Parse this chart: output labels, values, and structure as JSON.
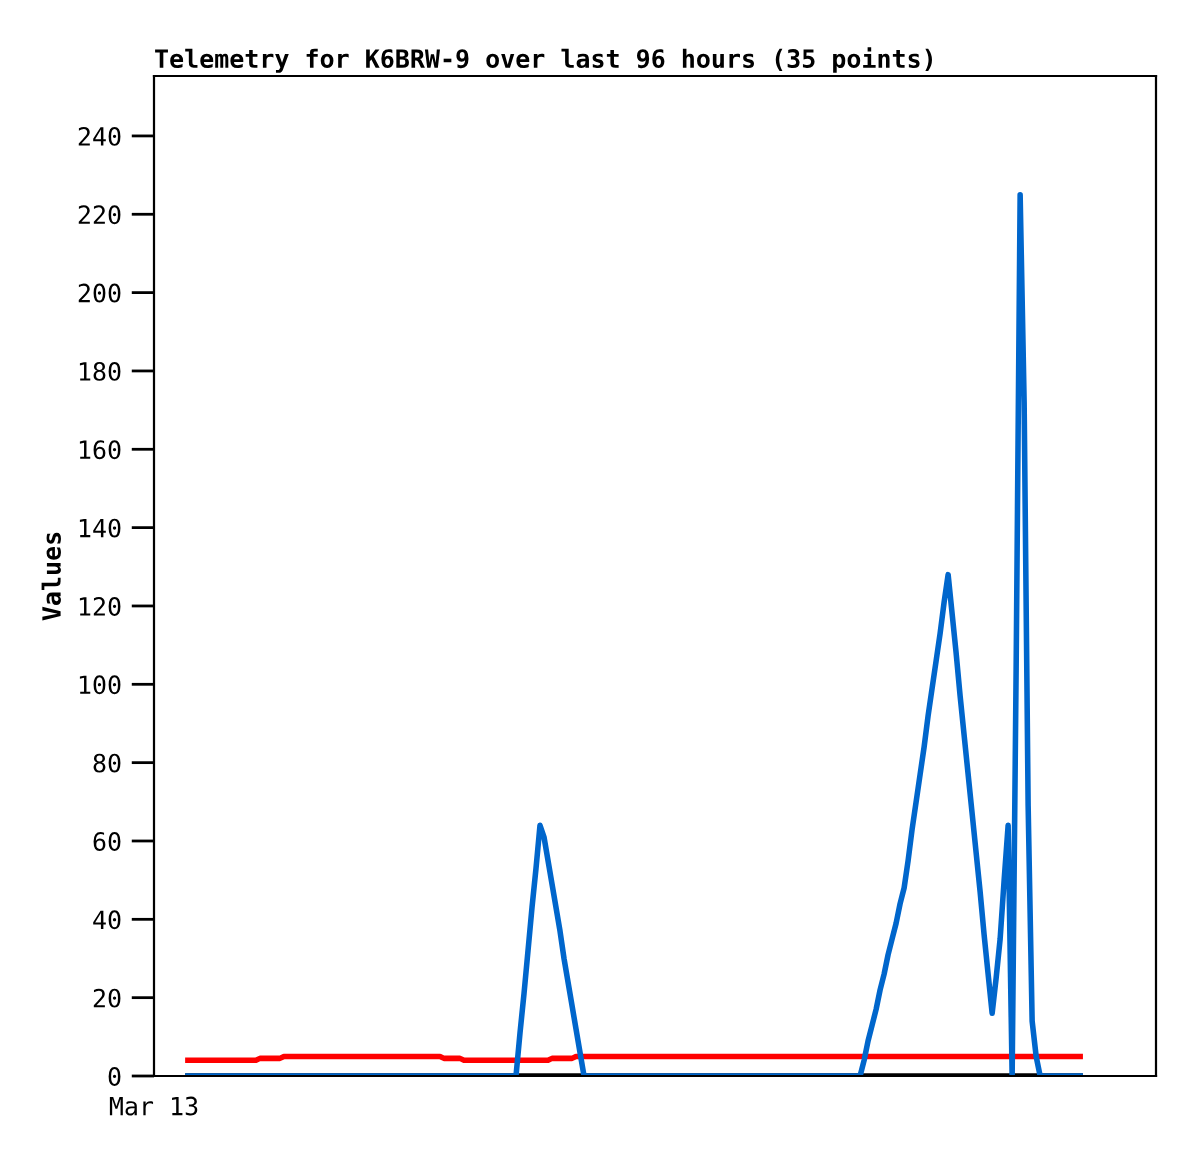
{
  "chart_data": {
    "type": "line",
    "title": "Telemetry for K6BRW-9 over last 96 hours (35 points)",
    "ylabel": "Values",
    "annotations": [
      "Mar 13"
    ],
    "categories": [
      null,
      null,
      null,
      null,
      null,
      null,
      null,
      null,
      null,
      null,
      null,
      null,
      null,
      null,
      null,
      null,
      null,
      null,
      null,
      null,
      null,
      null,
      null,
      null,
      null,
      null,
      null,
      null,
      null,
      null,
      null,
      null,
      null,
      null,
      null,
      null,
      null,
      null,
      null,
      null,
      null,
      null,
      null,
      null,
      null,
      null,
      null,
      null,
      null,
      null,
      null,
      null,
      null,
      null,
      null,
      null,
      null,
      null,
      null,
      null,
      null,
      null,
      null,
      null,
      null,
      null,
      null,
      null,
      null,
      null,
      null,
      null,
      null,
      null,
      null,
      null,
      null,
      null,
      null,
      null,
      null,
      null,
      null,
      null,
      null,
      null,
      null,
      null,
      null,
      null,
      null,
      null,
      null,
      null,
      null,
      null,
      null,
      null,
      null,
      null,
      null,
      null,
      null,
      null,
      null,
      null,
      null,
      null,
      null,
      null,
      null,
      null,
      null,
      null,
      null,
      null,
      null,
      null,
      null,
      null,
      null,
      null,
      null,
      null,
      null,
      null,
      null,
      null,
      null,
      null,
      null,
      null,
      null,
      null,
      null,
      null,
      null,
      null,
      null,
      null,
      null,
      null,
      null,
      null,
      null,
      null,
      null,
      null,
      null,
      null,
      null,
      null,
      null,
      null,
      null,
      null,
      null,
      null,
      null,
      null,
      null,
      null,
      null,
      null,
      null,
      null,
      null,
      null,
      null,
      null,
      null,
      null,
      null,
      null,
      null,
      null,
      null,
      null,
      null,
      null,
      null,
      null,
      null,
      null,
      null,
      null,
      null,
      null,
      null,
      null,
      null,
      null,
      null,
      null,
      null,
      null,
      null,
      null,
      null,
      null,
      null,
      null,
      null,
      null,
      null,
      null,
      null,
      null,
      null,
      null,
      null,
      null,
      null,
      null,
      null,
      null,
      null,
      null,
      null,
      null,
      null,
      null,
      null,
      null
    ],
    "ylim": [
      0,
      255.3
    ],
    "yticks": [
      0,
      20,
      40,
      60,
      80,
      100,
      120,
      140,
      160,
      180,
      200,
      220,
      240
    ],
    "grid": false,
    "marker": "none",
    "line_style": "solid",
    "series": [
      {
        "color": "#000000",
        "values": [
          0,
          0,
          0,
          0,
          0,
          0,
          0,
          0,
          0,
          0,
          0,
          0,
          0,
          0,
          0,
          0,
          0,
          0,
          0,
          0,
          0,
          0,
          0,
          0,
          0,
          0,
          0,
          0,
          0,
          0,
          0,
          0,
          0,
          0,
          0,
          0,
          0,
          0,
          0,
          0,
          0,
          0,
          0,
          0,
          0,
          0,
          0,
          0,
          0,
          0,
          0,
          0,
          0,
          0,
          0,
          0,
          0,
          0,
          0,
          0,
          0,
          0,
          0,
          0,
          0,
          0,
          0,
          0,
          0,
          0,
          0,
          0,
          0,
          0,
          0,
          0,
          0,
          0,
          0,
          0,
          0,
          0,
          0,
          0,
          0,
          0,
          0,
          0,
          0,
          0,
          0,
          0,
          0,
          0,
          0,
          0,
          0,
          0,
          0,
          0,
          0,
          0,
          0,
          0,
          0,
          0,
          0,
          0,
          0,
          0,
          0,
          0,
          0,
          0,
          0,
          0,
          0,
          0,
          0,
          0,
          0,
          0,
          0,
          0,
          0,
          0,
          0,
          0,
          0,
          0,
          0,
          0,
          0,
          0,
          0,
          0,
          0,
          0,
          0,
          0,
          0,
          0,
          0,
          0,
          0,
          0,
          0,
          0,
          0,
          0,
          0,
          0,
          0,
          0,
          0,
          0,
          0,
          0,
          0,
          0,
          0,
          0,
          0,
          0,
          0,
          0,
          0,
          0,
          0,
          0,
          0,
          0,
          0,
          0,
          0,
          0,
          0,
          0,
          0,
          0,
          0,
          0,
          0,
          0,
          0,
          0,
          0,
          0,
          0,
          0,
          0,
          0,
          0,
          0,
          0,
          0,
          0,
          0,
          0,
          0,
          0,
          0,
          0,
          0,
          0,
          0,
          0,
          0,
          0,
          0,
          0,
          0,
          0,
          0,
          0,
          0,
          0,
          0,
          0,
          0,
          0,
          0,
          0,
          0
        ]
      },
      {
        "color": "#ff0000",
        "values": [
          4,
          4,
          4,
          4,
          4,
          4,
          4,
          4,
          4,
          4,
          4,
          4,
          4,
          4,
          4,
          4,
          4,
          4,
          4.5,
          4.5,
          4.5,
          4.5,
          4.5,
          4.5,
          5,
          5,
          5,
          5,
          5,
          5,
          5,
          5,
          5,
          5,
          5,
          5,
          5,
          5,
          5,
          5,
          5,
          5,
          5,
          5,
          5,
          5,
          5,
          5,
          5,
          5,
          5,
          5,
          5,
          5,
          5,
          5,
          5,
          5,
          5,
          5,
          5,
          5,
          5,
          5,
          4.5,
          4.5,
          4.5,
          4.5,
          4.5,
          4,
          4,
          4,
          4,
          4,
          4,
          4,
          4,
          4,
          4,
          4,
          4,
          4,
          4,
          4,
          4,
          4,
          4,
          4,
          4,
          4,
          4,
          4.5,
          4.5,
          4.5,
          4.5,
          4.5,
          4.5,
          5,
          5,
          5,
          5,
          5,
          5,
          5,
          5,
          5,
          5,
          5,
          5,
          5,
          5,
          5,
          5,
          5,
          5,
          5,
          5,
          5,
          5,
          5,
          5,
          5,
          5,
          5,
          5,
          5,
          5,
          5,
          5,
          5,
          5,
          5,
          5,
          5,
          5,
          5,
          5,
          5,
          5,
          5,
          5,
          5,
          5,
          5,
          5,
          5,
          5,
          5,
          5,
          5,
          5,
          5,
          5,
          5,
          5,
          5,
          5,
          5,
          5,
          5,
          5,
          5,
          5,
          5,
          5,
          5,
          5,
          5,
          5,
          5,
          5,
          5,
          5,
          5,
          5,
          5,
          5,
          5,
          5,
          5,
          5,
          5,
          5,
          5,
          5,
          5,
          5,
          5,
          5,
          5,
          5,
          5,
          5,
          5,
          5,
          5,
          5,
          5,
          5,
          5,
          5,
          5,
          5,
          5,
          5,
          5,
          5,
          5,
          5,
          5,
          5,
          5,
          5,
          5,
          5,
          5,
          5,
          5,
          5,
          5,
          5,
          5,
          5,
          5
        ]
      },
      {
        "color": "#0066cc",
        "values": [
          0,
          0,
          0,
          0,
          0,
          0,
          0,
          0,
          0,
          0,
          0,
          0,
          0,
          0,
          0,
          0,
          0,
          0,
          0,
          0,
          0,
          0,
          0,
          0,
          0,
          0,
          0,
          0,
          0,
          0,
          0,
          0,
          0,
          0,
          0,
          0,
          0,
          0,
          0,
          0,
          0,
          0,
          0,
          0,
          0,
          0,
          0,
          0,
          0,
          0,
          0,
          0,
          0,
          0,
          0,
          0,
          0,
          0,
          0,
          0,
          0,
          0,
          0,
          0,
          0,
          0,
          0,
          0,
          0,
          0,
          0,
          0,
          0,
          0,
          0,
          0,
          0,
          0,
          0,
          0,
          0,
          0,
          0,
          11,
          21,
          32,
          43,
          53,
          64,
          61,
          55,
          49,
          43,
          37,
          30,
          24,
          18,
          12,
          6,
          0,
          0,
          0,
          0,
          0,
          0,
          0,
          0,
          0,
          0,
          0,
          0,
          0,
          0,
          0,
          0,
          0,
          0,
          0,
          0,
          0,
          0,
          0,
          0,
          0,
          0,
          0,
          0,
          0,
          0,
          0,
          0,
          0,
          0,
          0,
          0,
          0,
          0,
          0,
          0,
          0,
          0,
          0,
          0,
          0,
          0,
          0,
          0,
          0,
          0,
          0,
          0,
          0,
          0,
          0,
          0,
          0,
          0,
          0,
          0,
          0,
          0,
          0,
          0,
          0,
          0,
          0,
          0,
          0,
          0,
          4,
          9,
          13,
          17,
          22,
          26,
          31,
          35,
          39,
          44,
          48,
          55,
          63,
          70,
          77,
          84,
          92,
          99,
          106,
          113,
          121,
          128,
          118,
          108,
          97,
          87,
          77,
          67,
          57,
          47,
          36,
          26,
          16,
          25,
          35,
          50,
          64,
          0,
          104,
          225,
          172,
          69,
          14,
          5,
          0,
          0,
          0,
          0,
          0,
          0,
          0,
          0,
          0,
          0,
          0
        ]
      }
    ]
  }
}
